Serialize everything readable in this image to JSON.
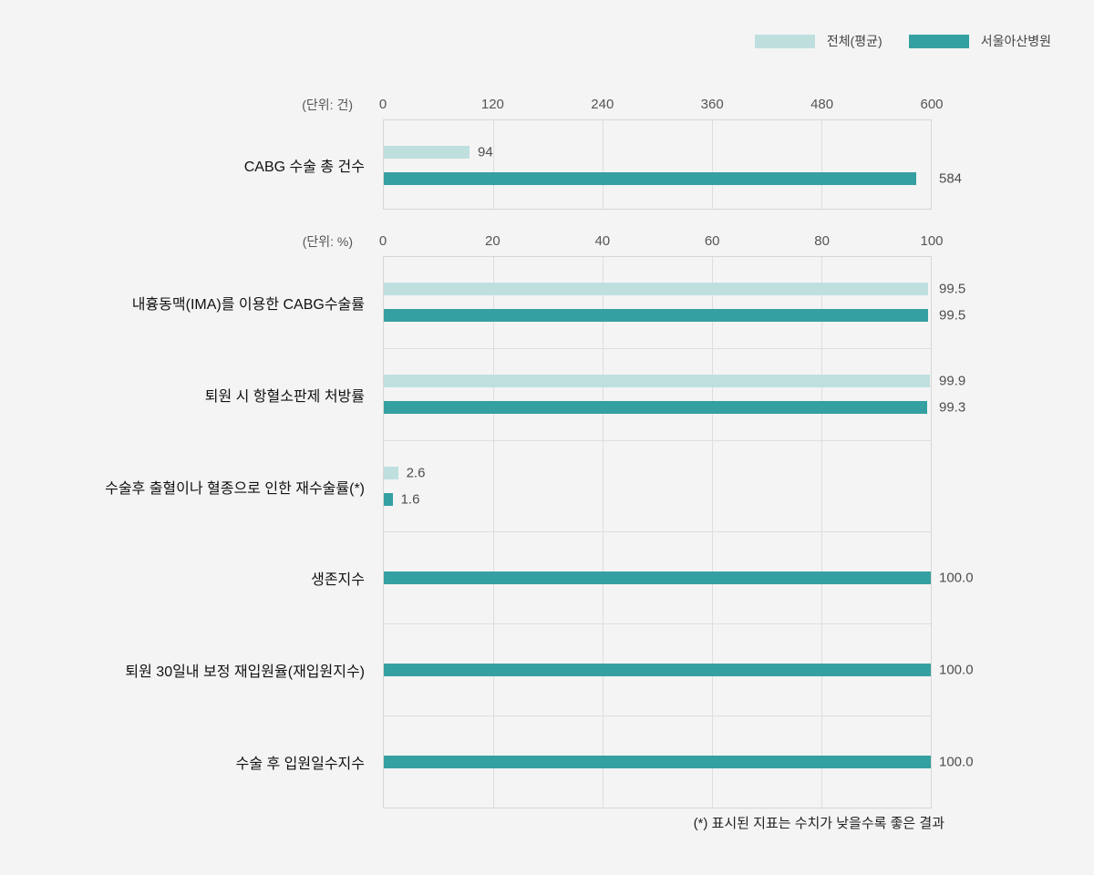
{
  "page": {
    "background": "#f4f4f4"
  },
  "colors": {
    "average": "#bfdfdf",
    "hospital": "#35a0a2"
  },
  "legend": {
    "items": [
      {
        "series_key": "average",
        "label": "전체(평균)"
      },
      {
        "series_key": "hospital",
        "label": "서울아산병원"
      }
    ]
  },
  "footnote": "(*) 표시된 지표는 수치가 낮을수록 좋은 결과",
  "chart_data": [
    {
      "type": "bar",
      "orientation": "horizontal",
      "unit_label": "(단위: 건)",
      "axis": {
        "min": 0,
        "max": 600,
        "ticks": [
          "0",
          "120",
          "240",
          "360",
          "480",
          "600"
        ]
      },
      "grid": true,
      "legend_position": "top-right",
      "series": [
        "전체(평균)",
        "서울아산병원"
      ],
      "rows": [
        {
          "category": "CABG 수술 총 건수",
          "bars": [
            {
              "series_key": "average",
              "value": 94,
              "label": "94"
            },
            {
              "series_key": "hospital",
              "value": 584,
              "label": "584"
            }
          ]
        }
      ]
    },
    {
      "type": "bar",
      "orientation": "horizontal",
      "unit_label": "(단위: %)",
      "axis": {
        "min": 0,
        "max": 100,
        "ticks": [
          "0",
          "20",
          "40",
          "60",
          "80",
          "100"
        ]
      },
      "grid": true,
      "series": [
        "전체(평균)",
        "서울아산병원"
      ],
      "rows": [
        {
          "category": "내흉동맥(IMA)를 이용한 CABG수술률",
          "bars": [
            {
              "series_key": "average",
              "value": 99.5,
              "label": "99.5"
            },
            {
              "series_key": "hospital",
              "value": 99.5,
              "label": "99.5"
            }
          ]
        },
        {
          "category": "퇴원 시 항혈소판제 처방률",
          "bars": [
            {
              "series_key": "average",
              "value": 99.9,
              "label": "99.9"
            },
            {
              "series_key": "hospital",
              "value": 99.3,
              "label": "99.3"
            }
          ]
        },
        {
          "category": "수술후 출혈이나 혈종으로 인한 재수술률(*)",
          "bars": [
            {
              "series_key": "average",
              "value": 2.6,
              "label": "2.6"
            },
            {
              "series_key": "hospital",
              "value": 1.6,
              "label": "1.6"
            }
          ]
        },
        {
          "category": "생존지수",
          "bars": [
            {
              "series_key": "hospital",
              "value": 100.0,
              "label": "100.0"
            }
          ]
        },
        {
          "category": "퇴원 30일내 보정 재입원율(재입원지수)",
          "bars": [
            {
              "series_key": "hospital",
              "value": 100.0,
              "label": "100.0"
            }
          ]
        },
        {
          "category": "수술 후 입원일수지수",
          "bars": [
            {
              "series_key": "hospital",
              "value": 100.0,
              "label": "100.0"
            }
          ]
        }
      ]
    }
  ]
}
